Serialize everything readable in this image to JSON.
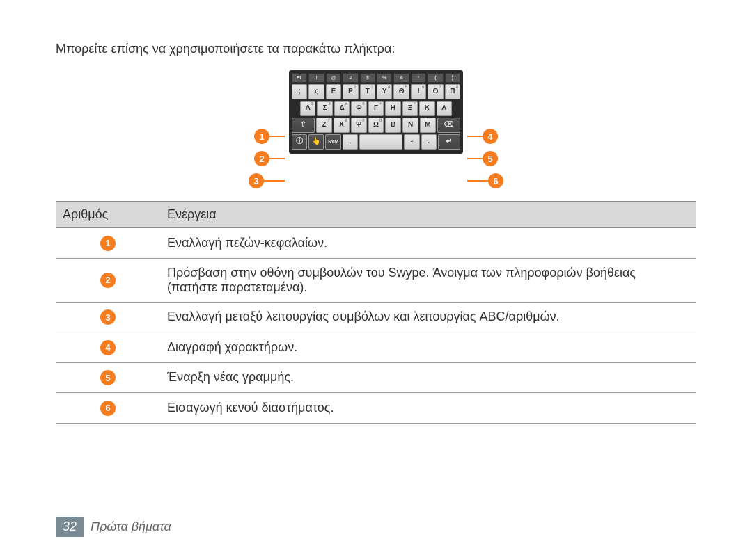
{
  "intro_text": "Μπορείτε επίσης να χρησιμοποιήσετε τα παρακάτω πλήκτρα:",
  "callouts": {
    "left": [
      "1",
      "2",
      "3"
    ],
    "right": [
      "4",
      "5",
      "6"
    ]
  },
  "keyboard": {
    "row0": [
      "EL",
      "!",
      "@",
      "#",
      "$",
      "%",
      "&",
      "*",
      "(",
      ")"
    ],
    "row1": [
      ";",
      "ς",
      "Ε",
      "Ρ",
      "Τ",
      "Υ",
      "Θ",
      "Ι",
      "Ο",
      "Π"
    ],
    "row1_sup": [
      "",
      "",
      "1",
      "2",
      "3",
      "4",
      "5",
      "6",
      "7",
      "8"
    ],
    "row2": [
      "Α",
      "Σ",
      "Δ",
      "Φ",
      "Γ",
      "Η",
      "Ξ",
      "Κ",
      "Λ"
    ],
    "row2_sup": [
      "$",
      "4",
      "5",
      "6",
      "+",
      "-",
      "=",
      "",
      ""
    ],
    "row3": [
      "⇧",
      "Ζ",
      "Χ",
      "Ψ",
      "Ω",
      "Β",
      "Ν",
      "Μ",
      "⌫"
    ],
    "row3_sup": [
      "",
      "7",
      "8",
      "9",
      "0",
      "",
      "",
      "",
      ""
    ],
    "row4": [
      "ⓘ",
      "👆",
      "SYM",
      ",",
      "",
      "-",
      ".",
      "↵"
    ]
  },
  "table": {
    "header_num": "Αριθμός",
    "header_action": "Ενέργεια",
    "rows": [
      {
        "n": "1",
        "text": "Εναλλαγή πεζών-κεφαλαίων."
      },
      {
        "n": "2",
        "text": "Πρόσβαση στην οθόνη συμβουλών του Swype. Άνοιγμα των πληροφοριών βοήθειας (πατήστε παρατεταμένα)."
      },
      {
        "n": "3",
        "text": "Εναλλαγή μεταξύ λειτουργίας συμβόλων και λειτουργίας ABC/αριθμών."
      },
      {
        "n": "4",
        "text": "Διαγραφή χαρακτήρων."
      },
      {
        "n": "5",
        "text": "Έναρξη νέας γραμμής."
      },
      {
        "n": "6",
        "text": "Εισαγωγή κενού διαστήματος."
      }
    ]
  },
  "footer": {
    "page_number": "32",
    "section": "Πρώτα βήματα"
  },
  "colors": {
    "accent": "#f57c1f",
    "header_bg": "#d9d9d9",
    "footer_box": "#7a8a94"
  }
}
